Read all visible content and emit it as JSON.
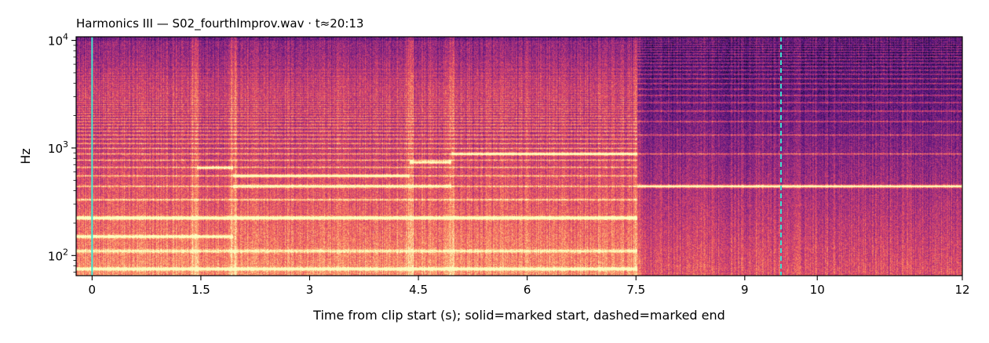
{
  "chart_data": {
    "type": "heatmap",
    "title": "Harmonics III  —  S02_fourthImprov.wav · t≈20:13",
    "xlabel": "Time from clip start (s); solid=marked start, dashed=marked end",
    "ylabel": "Hz",
    "xlim": [
      -0.22,
      12.0
    ],
    "ylim": [
      65,
      10800
    ],
    "yscale": "log",
    "colormap": "magma",
    "x_ticks": [
      {
        "value": 0,
        "label": "0"
      },
      {
        "value": 1.5,
        "label": "1.5"
      },
      {
        "value": 3,
        "label": "3"
      },
      {
        "value": 4.5,
        "label": "4.5"
      },
      {
        "value": 6,
        "label": "6"
      },
      {
        "value": 7.5,
        "label": "7.5"
      },
      {
        "value": 9,
        "label": "9"
      },
      {
        "value": 10,
        "label": "10"
      },
      {
        "value": 12,
        "label": "12"
      }
    ],
    "y_ticks": [
      {
        "value": 100,
        "base": "10",
        "exp": "2"
      },
      {
        "value": 1000,
        "base": "10",
        "exp": "3"
      },
      {
        "value": 10000,
        "base": "10",
        "exp": "4"
      }
    ],
    "segments": [
      {
        "t0": -0.22,
        "t1": 1.42,
        "f0": 110
      },
      {
        "t0": 1.42,
        "t1": 1.95,
        "f0": 110
      },
      {
        "t0": 1.95,
        "t1": 4.38,
        "f0": 110
      },
      {
        "t0": 4.38,
        "t1": 4.95,
        "f0": 110
      },
      {
        "t0": 4.95,
        "t1": 7.52,
        "f0": 110
      },
      {
        "t0": 7.52,
        "t1": 12.0,
        "f0": 440
      }
    ],
    "bright_tones": [
      {
        "t0": -0.22,
        "t1": 7.52,
        "freq": 75
      },
      {
        "t0": -0.22,
        "t1": 7.52,
        "freq": 225
      },
      {
        "t0": -0.22,
        "t1": 1.95,
        "freq": 150
      },
      {
        "t0": 1.45,
        "t1": 1.95,
        "freq": 655
      },
      {
        "t0": 1.95,
        "t1": 4.95,
        "freq": 440
      },
      {
        "t0": 1.95,
        "t1": 4.38,
        "freq": 550
      },
      {
        "t0": 4.38,
        "t1": 4.95,
        "freq": 735
      },
      {
        "t0": 4.95,
        "t1": 7.52,
        "freq": 880
      },
      {
        "t0": 7.52,
        "t1": 12.0,
        "freq": 440
      }
    ],
    "markers": [
      {
        "name": "marked start",
        "t": 0.0,
        "style": "solid",
        "color": "#40e0d0"
      },
      {
        "name": "marked end",
        "t": 9.5,
        "style": "dashed",
        "color": "#40e0d0"
      }
    ]
  }
}
